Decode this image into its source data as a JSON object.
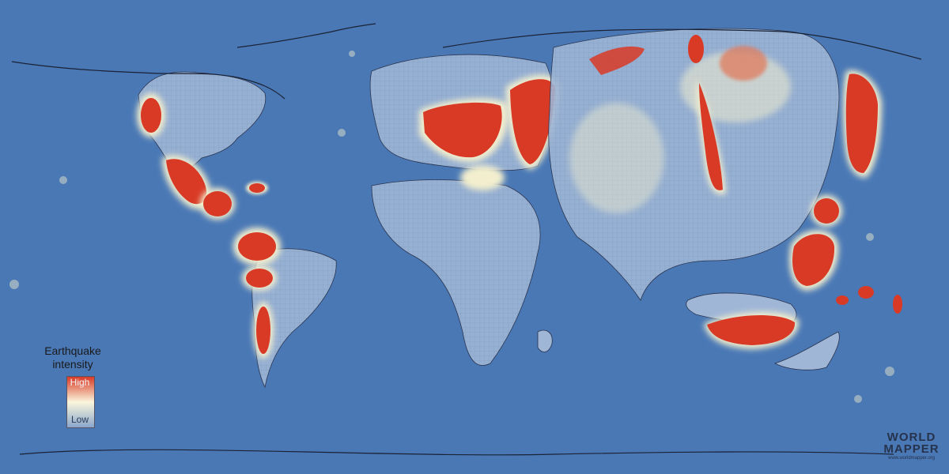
{
  "map": {
    "legend": {
      "title_line1": "Earthquake",
      "title_line2": "intensity",
      "high_label": "High",
      "low_label": "Low"
    },
    "brand": {
      "line1": "WORLD",
      "line2": "MAPPER",
      "url": "www.worldmapper.org"
    },
    "colors": {
      "ocean": "#4a78b5",
      "land_low": "#9fb6d6",
      "land_mid": "#f3efce",
      "land_high": "#d93a26"
    }
  }
}
